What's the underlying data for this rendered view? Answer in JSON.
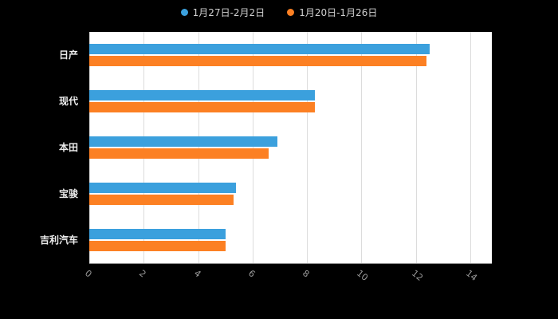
{
  "legend": {
    "items": [
      {
        "label": "1月27日-2月2日",
        "color": "#3BA0DD"
      },
      {
        "label": "1月20日-1月26日",
        "color": "#FC8023"
      }
    ]
  },
  "chart_data": {
    "type": "bar",
    "orientation": "horizontal",
    "title": "",
    "xlabel": "",
    "ylabel": "",
    "categories": [
      "日产",
      "现代",
      "本田",
      "宝骏",
      "吉利汽车"
    ],
    "series": [
      {
        "name": "1月27日-2月2日",
        "color": "#3BA0DD",
        "values": [
          12.5,
          8.3,
          6.9,
          5.4,
          5.0
        ]
      },
      {
        "name": "1月20日-1月26日",
        "color": "#FC8023",
        "values": [
          12.4,
          8.3,
          6.6,
          5.3,
          5.0
        ]
      }
    ],
    "xlim": [
      0,
      14
    ],
    "x_ticks": [
      0,
      2,
      4,
      6,
      8,
      10,
      12,
      14
    ],
    "grid": "vertical-gridlines-on",
    "legend_position": "top-center",
    "background": "#000000",
    "plot_background": "#ffffff"
  }
}
